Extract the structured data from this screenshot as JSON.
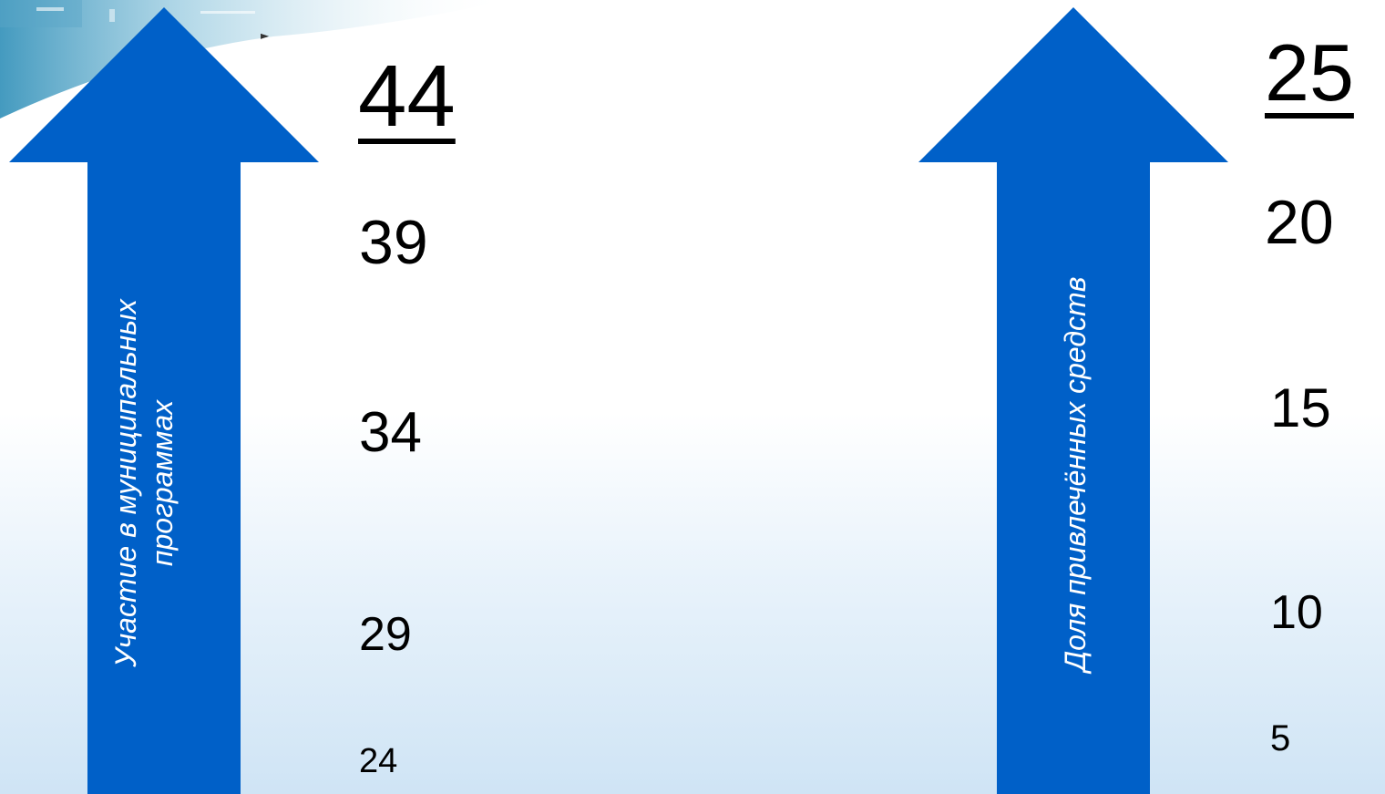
{
  "left_scale": {
    "arrow_label_line1": "Участие в муниципальных",
    "arrow_label_line2": "программах",
    "values": [
      "44",
      "39",
      "34",
      "29",
      "24"
    ],
    "arrow_color": "#0060c8"
  },
  "right_scale": {
    "arrow_label": "Доля привлечённых средств",
    "values": [
      "25",
      "20",
      "15",
      "10",
      "5"
    ],
    "arrow_color": "#0060c8"
  },
  "decoration": {
    "small_marker": "►"
  }
}
